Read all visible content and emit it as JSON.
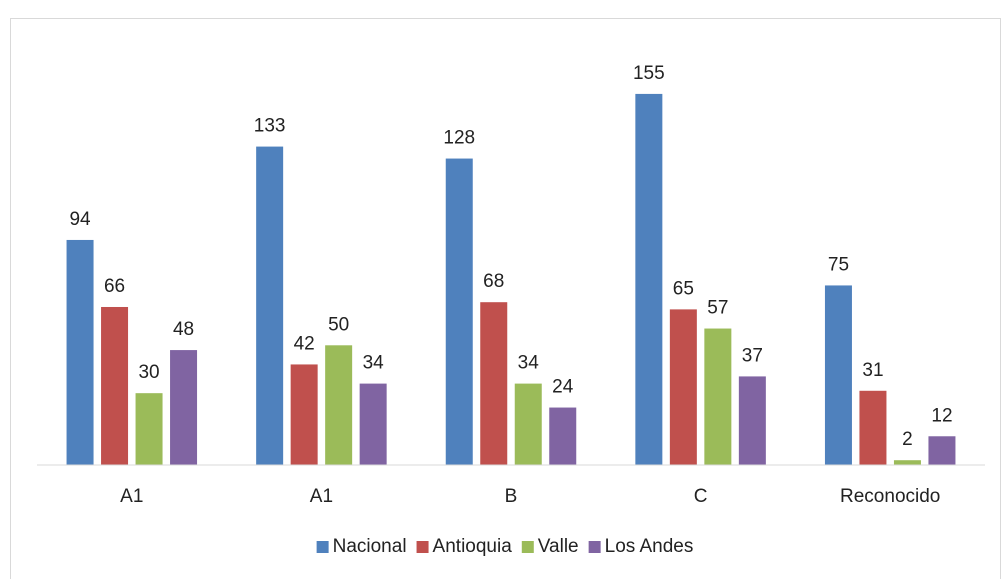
{
  "chart_data": {
    "type": "bar",
    "categories": [
      "A1",
      "A1",
      "B",
      "C",
      "Reconocido"
    ],
    "series": [
      {
        "name": "Nacional",
        "color": "#4f81bd",
        "values": [
          94,
          133,
          128,
          155,
          75
        ]
      },
      {
        "name": "Antioquia",
        "color": "#c0504d",
        "values": [
          66,
          42,
          68,
          65,
          31
        ]
      },
      {
        "name": "Valle",
        "color": "#9bbb59",
        "values": [
          30,
          50,
          34,
          57,
          2
        ]
      },
      {
        "name": "Los Andes",
        "color": "#8064a2",
        "values": [
          48,
          34,
          24,
          37,
          12
        ]
      }
    ],
    "ylim": [
      0,
      170
    ],
    "legend": "bottom"
  }
}
